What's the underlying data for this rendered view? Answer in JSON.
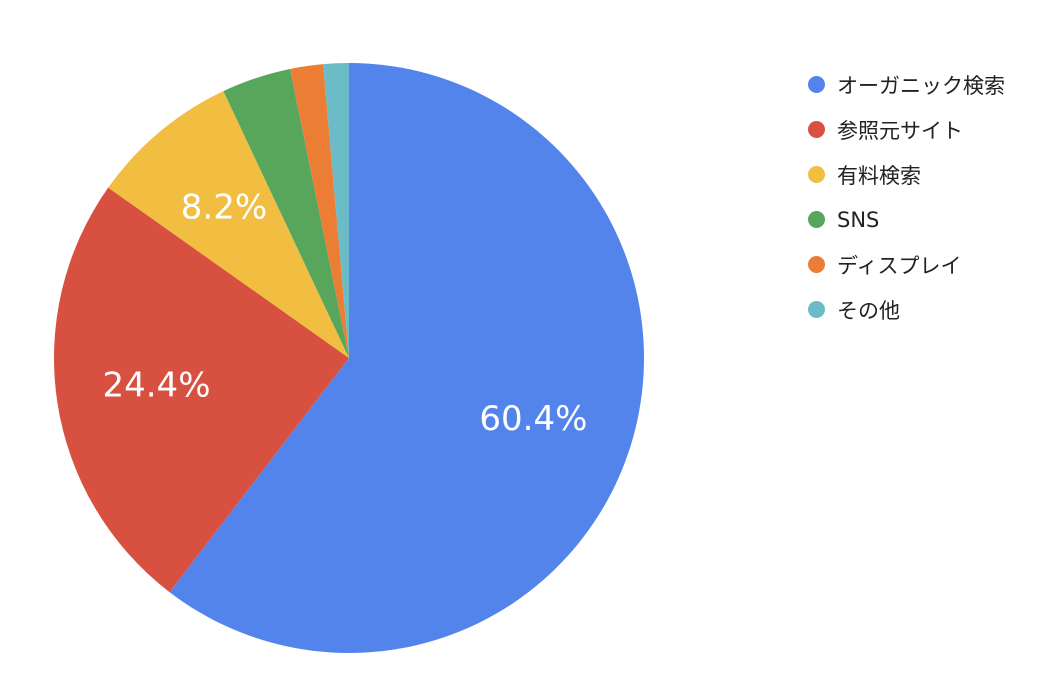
{
  "chart_data": {
    "type": "pie",
    "categories": [
      "オーガニック検索",
      "参照元サイト",
      "有料検索",
      "SNS",
      "ディスプレイ",
      "その他"
    ],
    "values": [
      60.4,
      24.4,
      8.2,
      3.8,
      1.8,
      1.4
    ],
    "value_labels": [
      "60.4%",
      "24.4%",
      "8.2%",
      "",
      "",
      ""
    ],
    "colors": [
      "#5384EC",
      "#D85140",
      "#F1BE42",
      "#58A65C",
      "#EB7D34",
      "#6CBCC8"
    ],
    "start_angle_deg": 0,
    "direction": "clockwise",
    "legend_position": "right"
  }
}
